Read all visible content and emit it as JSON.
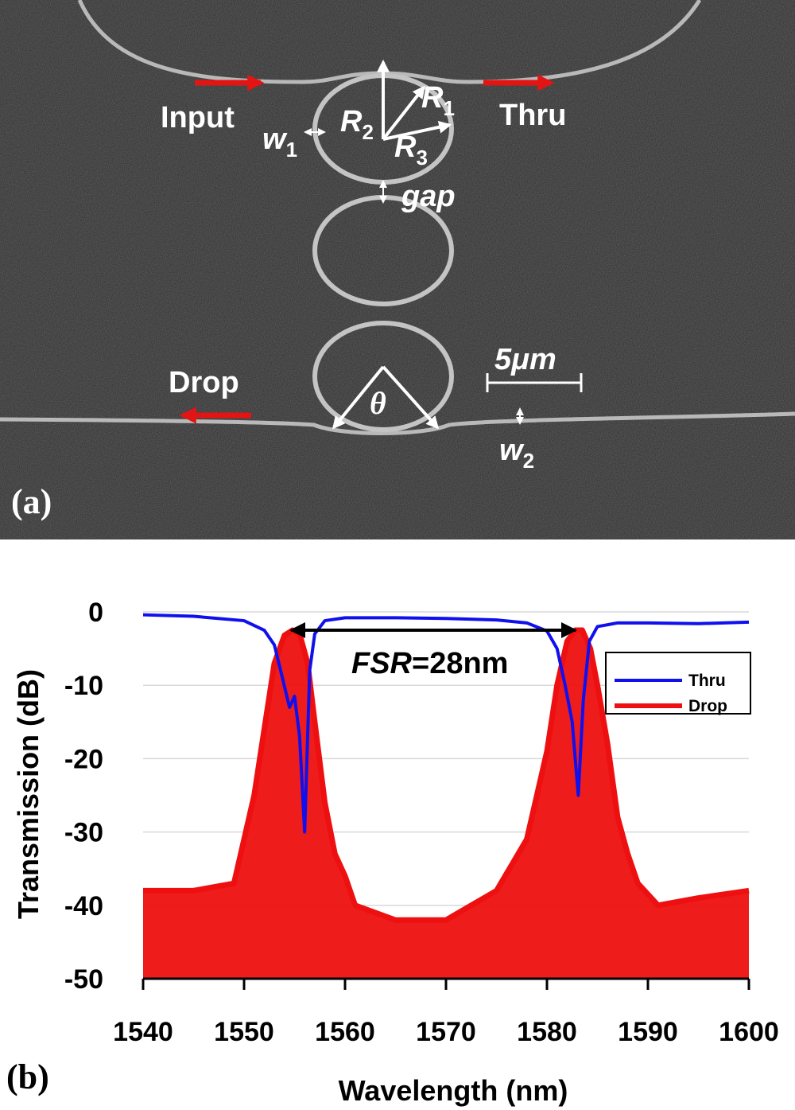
{
  "panel_a": {
    "tag": "(a)",
    "labels": {
      "input": "Input",
      "thru": "Thru",
      "drop": "Drop",
      "w1": "w",
      "w1_sub": "1",
      "w2": "w",
      "w2_sub": "2",
      "r1": "R",
      "r1_sub": "1",
      "r2": "R",
      "r2_sub": "2",
      "r3": "R",
      "r3_sub": "3",
      "gap": "gap",
      "theta": "θ",
      "scale": "5μm"
    }
  },
  "panel_b": {
    "tag": "(b)",
    "annotation_italic": "FSR",
    "annotation_rest": "=28nm"
  },
  "chart_data": {
    "type": "line",
    "xlabel": "Wavelength (nm)",
    "ylabel": "Transmission (dB)",
    "xlim": [
      1540,
      1600
    ],
    "ylim": [
      -50,
      0
    ],
    "xticks": [
      "1540",
      "1550",
      "1560",
      "1570",
      "1580",
      "1590",
      "1600"
    ],
    "yticks": [
      "0",
      "-10",
      "-20",
      "-30",
      "-40",
      "-50"
    ],
    "grid": "horizontal",
    "legend_position": "right",
    "series": [
      {
        "name": "Thru",
        "color": "#1010ee",
        "x": [
          1540,
          1545,
          1550,
          1552,
          1553,
          1553.8,
          1554.5,
          1555,
          1555.5,
          1556,
          1556.5,
          1557,
          1558,
          1560,
          1565,
          1570,
          1575,
          1578,
          1580,
          1581,
          1581.8,
          1582.5,
          1583.1,
          1583.6,
          1584.2,
          1585,
          1587,
          1590,
          1595,
          1600
        ],
        "y": [
          -0.4,
          -0.6,
          -1.2,
          -2.5,
          -4.5,
          -9,
          -13,
          -11.5,
          -17,
          -30,
          -8,
          -3,
          -1.2,
          -0.8,
          -0.8,
          -0.9,
          -1.1,
          -1.5,
          -2.6,
          -5,
          -10,
          -15,
          -25,
          -12,
          -4,
          -2,
          -1.5,
          -1.5,
          -1.6,
          -1.4
        ]
      },
      {
        "name": "Drop",
        "color": "#ee1010",
        "x": [
          1540,
          1545,
          1549,
          1550,
          1551,
          1552,
          1553,
          1554,
          1554.8,
          1555.5,
          1556.3,
          1557,
          1558,
          1559,
          1560,
          1561,
          1565,
          1570,
          1575,
          1578,
          1580,
          1581,
          1582,
          1582.8,
          1583.5,
          1584.3,
          1585,
          1586,
          1587,
          1588,
          1589,
          1591,
          1595,
          1600
        ],
        "y": [
          -38,
          -38,
          -37,
          -31,
          -25,
          -16,
          -7,
          -3.2,
          -2.5,
          -3,
          -7,
          -15,
          -26,
          -33,
          -36,
          -40,
          -42,
          -42,
          -38,
          -31,
          -19,
          -10,
          -4,
          -2.5,
          -2.5,
          -5,
          -10,
          -18,
          -28,
          -33,
          -37,
          -40,
          -39,
          -38
        ]
      }
    ]
  }
}
